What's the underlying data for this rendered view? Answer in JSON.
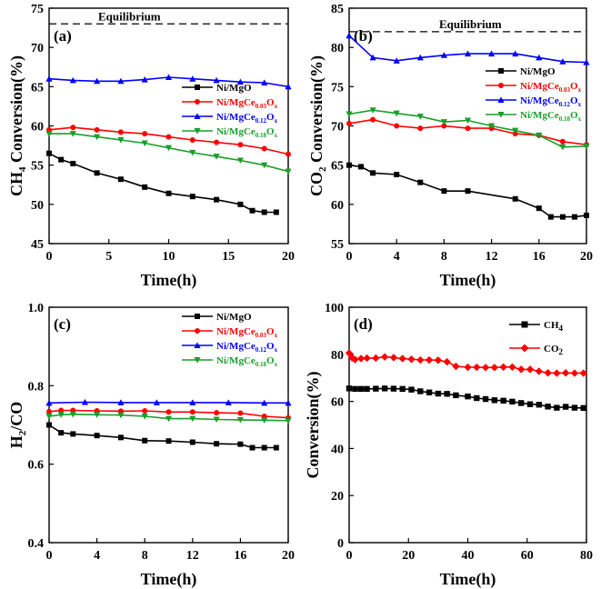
{
  "colors": {
    "ni_mgo": "#000000",
    "ce003": "#ff0000",
    "ce012": "#0000ff",
    "ce018": "#1a9e2a"
  },
  "chart_data": [
    {
      "type": "line",
      "id": "a",
      "panel_label": "(a)",
      "ylabel": "CH4 Conversion(%)",
      "ylabel_parts": {
        "pre": "CH",
        "sub": "4",
        "post": " Conversion(%)"
      },
      "xlabel": "Time(h)",
      "xlim": [
        0,
        20
      ],
      "ylim": [
        45,
        75
      ],
      "xticks": [
        0,
        5,
        10,
        15,
        20
      ],
      "yticks": [
        45,
        50,
        55,
        60,
        65,
        70,
        75
      ],
      "equilibrium": {
        "label": "Equilibrium",
        "value": 73
      },
      "legend_position": "right",
      "series": [
        {
          "name": "Ni/MgO",
          "name_base": "Ni/MgO",
          "color_key": "ni_mgo",
          "marker": "square",
          "x": [
            0,
            1,
            2,
            4,
            6,
            8,
            10,
            12,
            14,
            16,
            17,
            18,
            19
          ],
          "y": [
            56.5,
            55.7,
            55.2,
            54,
            53.2,
            52.2,
            51.4,
            51,
            50.6,
            50,
            49.2,
            49,
            49
          ]
        },
        {
          "name": "Ni/MgCe0.03Ox",
          "name_base": "Ni/MgCe",
          "name_sub": "0.03",
          "name_tail": "O",
          "name_tail_sub": "x",
          "color_key": "ce003",
          "marker": "circle",
          "x": [
            0,
            2,
            4,
            6,
            8,
            10,
            12,
            14,
            16,
            18,
            20
          ],
          "y": [
            59.5,
            59.8,
            59.5,
            59.2,
            59,
            58.6,
            58.2,
            57.9,
            57.6,
            57.1,
            56.4
          ]
        },
        {
          "name": "Ni/MgCe0.12Ox",
          "name_base": "Ni/MgCe",
          "name_sub": "0.12",
          "name_tail": "O",
          "name_tail_sub": "x",
          "color_key": "ce012",
          "marker": "triangle-up",
          "x": [
            0,
            2,
            4,
            6,
            8,
            10,
            12,
            14,
            16,
            18,
            20
          ],
          "y": [
            66,
            65.8,
            65.7,
            65.7,
            65.9,
            66.2,
            66,
            65.8,
            65.6,
            65.5,
            65
          ]
        },
        {
          "name": "Ni/MgCe0.18Ox",
          "name_base": "Ni/MgCe",
          "name_sub": "0.18",
          "name_tail": "O",
          "name_tail_sub": "x",
          "color_key": "ce018",
          "marker": "triangle-down",
          "x": [
            0,
            2,
            4,
            6,
            8,
            10,
            12,
            14,
            16,
            18,
            20
          ],
          "y": [
            59,
            59,
            58.6,
            58.2,
            57.8,
            57.2,
            56.6,
            56.1,
            55.6,
            55,
            54.2
          ]
        }
      ]
    },
    {
      "type": "line",
      "id": "b",
      "panel_label": "(b)",
      "ylabel": "CO2 Conversion(%)",
      "ylabel_parts": {
        "pre": "CO",
        "sub": "2",
        "post": " Conversion(%)"
      },
      "xlabel": "Time(h)",
      "xlim": [
        0,
        20
      ],
      "ylim": [
        55,
        85
      ],
      "xticks": [
        0,
        4,
        8,
        12,
        16,
        20
      ],
      "yticks": [
        55,
        60,
        65,
        70,
        75,
        80,
        85
      ],
      "equilibrium": {
        "label": "Equilibrium",
        "value": 82
      },
      "legend_position": "right",
      "series": [
        {
          "name": "Ni/MgO",
          "name_base": "Ni/MgO",
          "color_key": "ni_mgo",
          "marker": "square",
          "x": [
            0,
            1,
            2,
            4,
            6,
            8,
            10,
            14,
            16,
            17,
            18,
            19,
            20
          ],
          "y": [
            65,
            64.8,
            64,
            63.8,
            62.8,
            61.7,
            61.7,
            60.7,
            59.5,
            58.4,
            58.4,
            58.4,
            58.6
          ]
        },
        {
          "name": "Ni/MgCe0.03Ox",
          "name_base": "Ni/MgCe",
          "name_sub": "0.03",
          "name_tail": "O",
          "name_tail_sub": "x",
          "color_key": "ce003",
          "marker": "circle",
          "x": [
            0,
            2,
            4,
            6,
            8,
            10,
            12,
            14,
            16,
            18,
            20
          ],
          "y": [
            70.3,
            70.8,
            70,
            69.7,
            70,
            69.7,
            69.7,
            69,
            68.8,
            68,
            67.6
          ]
        },
        {
          "name": "Ni/MgCe0.12Ox",
          "name_base": "Ni/MgCe",
          "name_sub": "0.12",
          "name_tail": "O",
          "name_tail_sub": "x",
          "color_key": "ce012",
          "marker": "triangle-up",
          "x": [
            0,
            2,
            4,
            6,
            8,
            10,
            12,
            14,
            16,
            18,
            20
          ],
          "y": [
            81.5,
            78.7,
            78.3,
            78.7,
            79,
            79.2,
            79.2,
            79.2,
            78.7,
            78.2,
            78.1
          ]
        },
        {
          "name": "Ni/MgCe0.18Ox",
          "name_base": "Ni/MgCe",
          "name_sub": "0.18",
          "name_tail": "O",
          "name_tail_sub": "x",
          "color_key": "ce018",
          "marker": "triangle-down",
          "x": [
            0,
            2,
            4,
            6,
            8,
            10,
            12,
            14,
            16,
            18,
            20
          ],
          "y": [
            71.5,
            72,
            71.6,
            71.2,
            70.5,
            70.7,
            70,
            69.4,
            68.8,
            67.3,
            67.4
          ]
        }
      ]
    },
    {
      "type": "line",
      "id": "c",
      "panel_label": "(c)",
      "ylabel": "H2/CO",
      "ylabel_parts": {
        "pre": "H",
        "sub": "2",
        "post": "/CO"
      },
      "xlabel": "Time(h)",
      "xlim": [
        0,
        20
      ],
      "ylim": [
        0.4,
        1.0
      ],
      "xticks": [
        0,
        4,
        8,
        12,
        16,
        20
      ],
      "yticks": [
        0.4,
        0.6,
        0.8,
        1.0
      ],
      "legend_position": "top-right",
      "series": [
        {
          "name": "Ni/MgO",
          "name_base": "Ni/MgO",
          "color_key": "ni_mgo",
          "marker": "square",
          "x": [
            0,
            1,
            2,
            4,
            6,
            8,
            10,
            12,
            14,
            16,
            17,
            18,
            19
          ],
          "y": [
            0.7,
            0.68,
            0.677,
            0.673,
            0.668,
            0.66,
            0.659,
            0.656,
            0.652,
            0.651,
            0.642,
            0.642,
            0.642
          ]
        },
        {
          "name": "Ni/MgCe0.03Ox",
          "name_base": "Ni/MgCe",
          "name_sub": "0.03",
          "name_tail": "O",
          "name_tail_sub": "x",
          "color_key": "ce003",
          "marker": "circle",
          "x": [
            0,
            1,
            2,
            4,
            6,
            8,
            10,
            12,
            14,
            16,
            18,
            20
          ],
          "y": [
            0.734,
            0.737,
            0.737,
            0.736,
            0.735,
            0.736,
            0.733,
            0.733,
            0.731,
            0.73,
            0.722,
            0.718
          ]
        },
        {
          "name": "Ni/MgCe0.12Ox",
          "name_base": "Ni/MgCe",
          "name_sub": "0.12",
          "name_tail": "O",
          "name_tail_sub": "x",
          "color_key": "ce012",
          "marker": "triangle-up",
          "x": [
            0,
            3,
            6,
            9,
            12,
            15,
            18,
            20
          ],
          "y": [
            0.756,
            0.758,
            0.757,
            0.757,
            0.757,
            0.757,
            0.756,
            0.756
          ]
        },
        {
          "name": "Ni/MgCe0.18Ox",
          "name_base": "Ni/MgCe",
          "name_sub": "0.18",
          "name_tail": "O",
          "name_tail_sub": "x",
          "color_key": "ce018",
          "marker": "triangle-down",
          "x": [
            0,
            1,
            2,
            4,
            6,
            8,
            10,
            12,
            14,
            16,
            18,
            20
          ],
          "y": [
            0.722,
            0.726,
            0.727,
            0.726,
            0.725,
            0.722,
            0.716,
            0.716,
            0.714,
            0.713,
            0.712,
            0.711
          ]
        }
      ]
    },
    {
      "type": "line",
      "id": "d",
      "panel_label": "(d)",
      "ylabel": "Conversion(%)",
      "ylabel_parts": {
        "pre": "Conversion(%)",
        "sub": "",
        "post": ""
      },
      "xlabel": "Time(h)",
      "xlim": [
        0,
        80
      ],
      "ylim": [
        0,
        100
      ],
      "xticks": [
        0,
        20,
        40,
        60,
        80
      ],
      "yticks": [
        0,
        20,
        40,
        60,
        80,
        100
      ],
      "legend_position": "top-right",
      "series": [
        {
          "name": "CH4",
          "name_base": "CH",
          "name_sub": "4",
          "color_key": "ni_mgo",
          "marker": "square",
          "x": [
            0,
            2,
            4,
            6,
            9,
            12,
            15,
            18,
            21,
            24,
            27,
            30,
            33,
            36,
            40,
            43,
            46,
            49,
            52,
            55,
            58,
            61,
            64,
            67,
            70,
            73,
            76,
            79
          ],
          "y": [
            65.5,
            65.3,
            65.3,
            65.3,
            65.4,
            65.5,
            65.4,
            65.3,
            65,
            64.3,
            63.8,
            63.3,
            63.2,
            62.6,
            62.1,
            61.4,
            61,
            60.5,
            60.3,
            59.9,
            59.3,
            58.8,
            58.6,
            57.8,
            57.3,
            57.7,
            57.3,
            57.2
          ]
        },
        {
          "name": "CO2",
          "name_base": "CO",
          "name_sub": "2",
          "color_key": "ce003",
          "marker": "diamond",
          "x": [
            0,
            1,
            2,
            4,
            6,
            9,
            12,
            15,
            18,
            21,
            24,
            27,
            30,
            33,
            36,
            40,
            43,
            46,
            49,
            52,
            55,
            58,
            61,
            64,
            67,
            70,
            73,
            76,
            79
          ],
          "y": [
            80.5,
            78.5,
            77.8,
            78.2,
            78.4,
            78.4,
            78.9,
            78.6,
            78.2,
            77.9,
            77.6,
            77.6,
            77.5,
            76.8,
            74.9,
            74.5,
            74.5,
            74.4,
            74.4,
            74.6,
            74.6,
            73.6,
            73.6,
            72.8,
            72.1,
            72,
            72.1,
            72,
            72
          ]
        }
      ]
    }
  ]
}
